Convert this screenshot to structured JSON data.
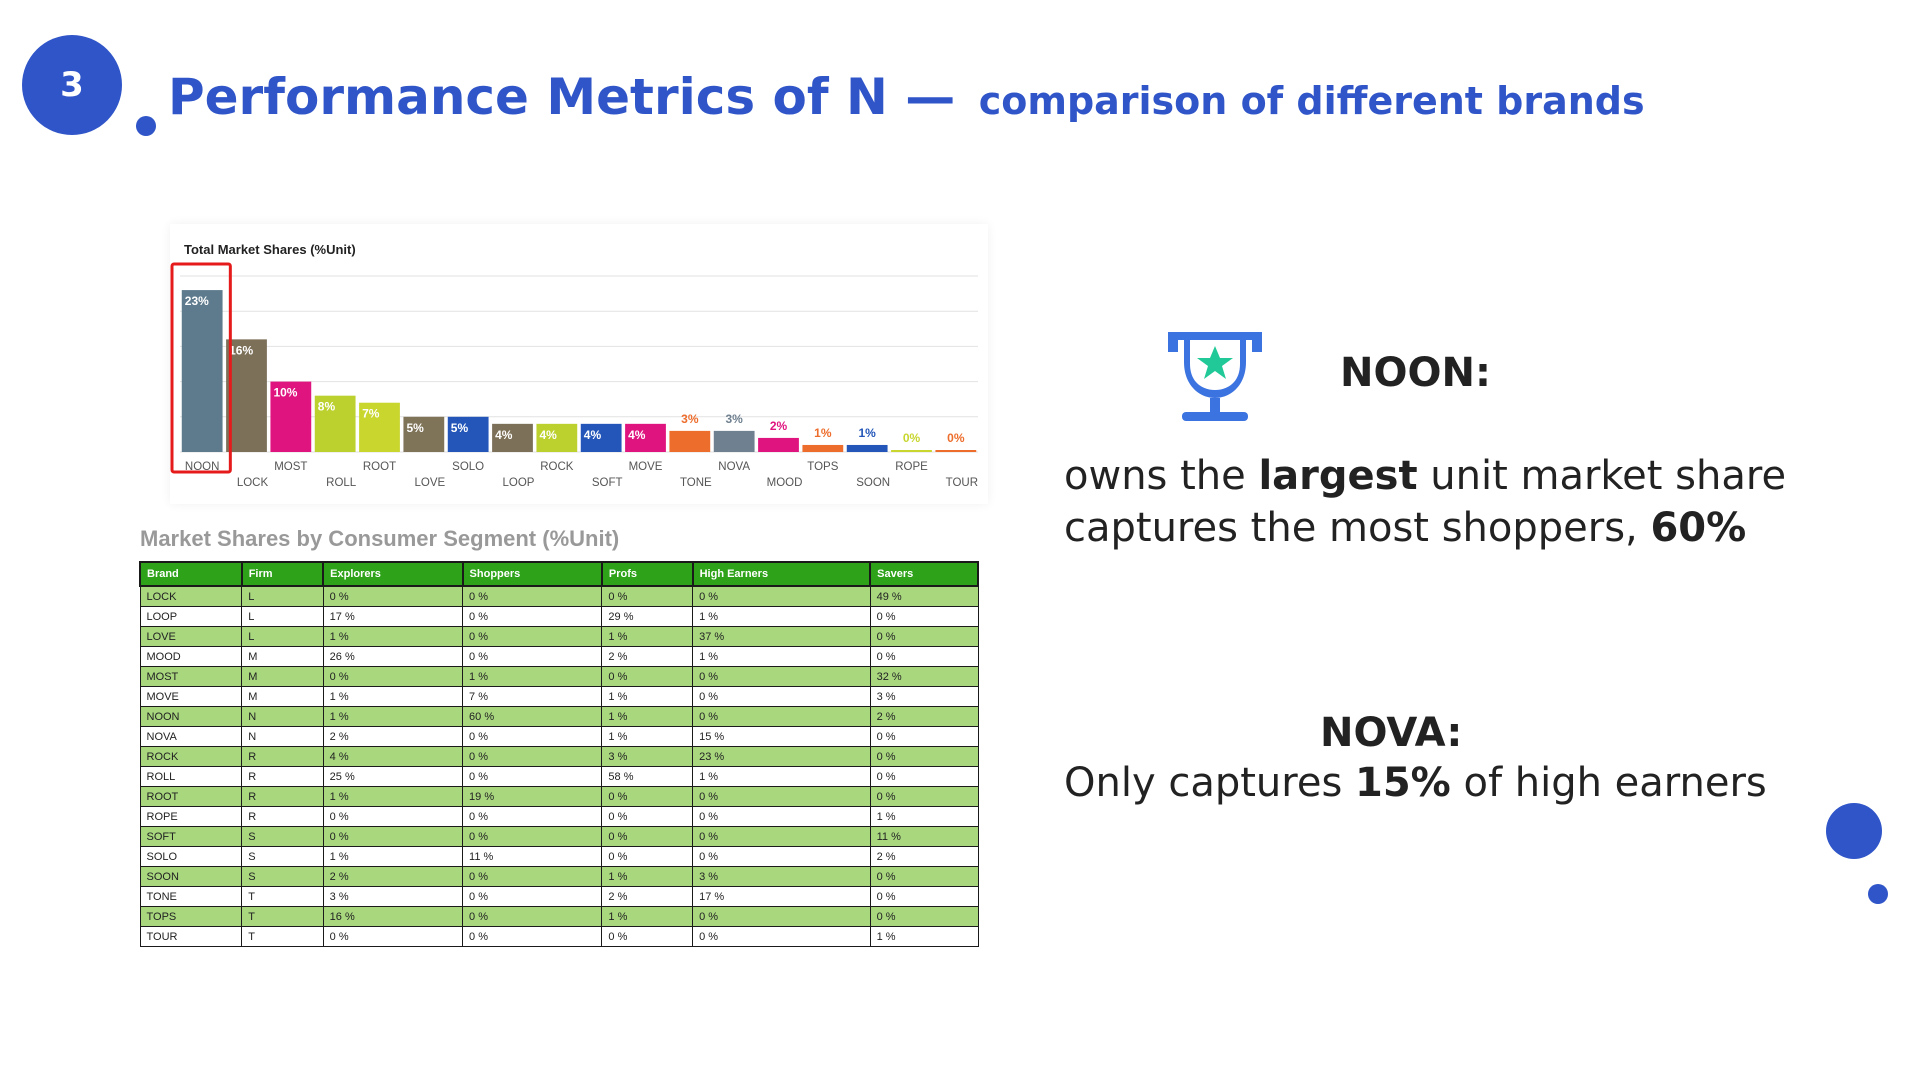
{
  "slide": {
    "number": "3",
    "title_main": "Performance Metrics of N — ",
    "title_sub": "comparison of different brands"
  },
  "chart_data": {
    "type": "bar",
    "title": "Total Market Shares (%Unit)",
    "categories": [
      "NOON",
      "LOCK",
      "MOST",
      "ROLL",
      "ROOT",
      "LOVE",
      "SOLO",
      "LOOP",
      "ROCK",
      "SOFT",
      "MOVE",
      "TONE",
      "NOVA",
      "MOOD",
      "TOPS",
      "SOON",
      "ROPE",
      "TOUR"
    ],
    "values": [
      23,
      16,
      10,
      8,
      7,
      5,
      5,
      4,
      4,
      4,
      4,
      3,
      3,
      2,
      1,
      1,
      0,
      0
    ],
    "labels": [
      "23%",
      "16%",
      "10%",
      "8%",
      "7%",
      "5%",
      "5%",
      "4%",
      "4%",
      "4%",
      "4%",
      "3%",
      "3%",
      "2%",
      "1%",
      "1%",
      "0%",
      "0%"
    ],
    "colors": [
      "#5e7b8d",
      "#7d7058",
      "#e0147f",
      "#bcd12d",
      "#c8d62e",
      "#7f7358",
      "#2356b8",
      "#7d7058",
      "#bcd12d",
      "#2356b8",
      "#e0147f",
      "#ed6d2c",
      "#6f8090",
      "#e0147f",
      "#ed6d2c",
      "#2356b8",
      "#c8d62e",
      "#ed6d2c"
    ],
    "ylim": [
      0,
      25
    ],
    "grid": true,
    "highlight_color": "#e51b1b"
  },
  "segment_table": {
    "title": "Market Shares by Consumer Segment (%Unit)",
    "headers": [
      "Brand",
      "Firm",
      "Explorers",
      "Shoppers",
      "Profs",
      "High Earners",
      "Savers"
    ],
    "rows": [
      [
        "LOCK",
        "L",
        "0 %",
        "0 %",
        "0 %",
        "0 %",
        "49 %"
      ],
      [
        "LOOP",
        "L",
        "17 %",
        "0 %",
        "29 %",
        "1 %",
        "0 %"
      ],
      [
        "LOVE",
        "L",
        "1 %",
        "0 %",
        "1 %",
        "37 %",
        "0 %"
      ],
      [
        "MOOD",
        "M",
        "26 %",
        "0 %",
        "2 %",
        "1 %",
        "0 %"
      ],
      [
        "MOST",
        "M",
        "0 %",
        "1 %",
        "0 %",
        "0 %",
        "32 %"
      ],
      [
        "MOVE",
        "M",
        "1 %",
        "7 %",
        "1 %",
        "0 %",
        "3 %"
      ],
      [
        "NOON",
        "N",
        "1 %",
        "60 %",
        "1 %",
        "0 %",
        "2 %"
      ],
      [
        "NOVA",
        "N",
        "2 %",
        "0 %",
        "1 %",
        "15 %",
        "0 %"
      ],
      [
        "ROCK",
        "R",
        "4 %",
        "0 %",
        "3 %",
        "23 %",
        "0 %"
      ],
      [
        "ROLL",
        "R",
        "25 %",
        "0 %",
        "58 %",
        "1 %",
        "0 %"
      ],
      [
        "ROOT",
        "R",
        "1 %",
        "19 %",
        "0 %",
        "0 %",
        "0 %"
      ],
      [
        "ROPE",
        "R",
        "0 %",
        "0 %",
        "0 %",
        "0 %",
        "1 %"
      ],
      [
        "SOFT",
        "S",
        "0 %",
        "0 %",
        "0 %",
        "0 %",
        "11 %"
      ],
      [
        "SOLO",
        "S",
        "1 %",
        "11 %",
        "0 %",
        "0 %",
        "2 %"
      ],
      [
        "SOON",
        "S",
        "2 %",
        "0 %",
        "1 %",
        "3 %",
        "0 %"
      ],
      [
        "TONE",
        "T",
        "3 %",
        "0 %",
        "2 %",
        "17 %",
        "0 %"
      ],
      [
        "TOPS",
        "T",
        "16 %",
        "0 %",
        "1 %",
        "0 %",
        "0 %"
      ],
      [
        "TOUR",
        "T",
        "0 %",
        "0 %",
        "0 %",
        "0 %",
        "1 %"
      ]
    ]
  },
  "noon": {
    "label": "NOON:",
    "line1_pre": "owns the ",
    "line1_bold": "largest",
    "line1_post": " unit market share",
    "line2_pre": "captures the most shoppers, ",
    "line2_bold": "60%"
  },
  "nova": {
    "label": "NOVA:",
    "line_pre": "Only captures ",
    "line_bold": "15%",
    "line_post": " of high earners"
  },
  "icons": {
    "trophy": "trophy-star-icon"
  },
  "colors": {
    "accent": "#2f55c8",
    "trophy_star": "#20c997"
  }
}
